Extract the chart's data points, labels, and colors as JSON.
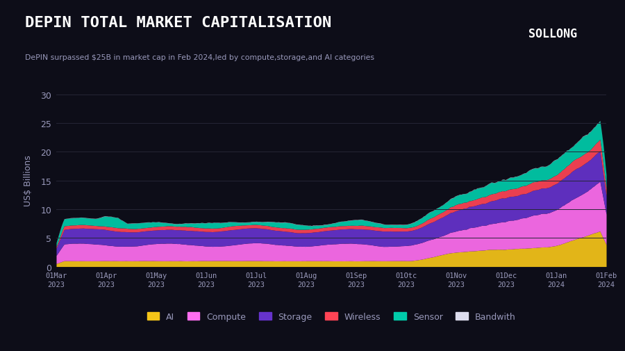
{
  "title": "DEPIN TOTAL MARKET CAPITALISATION",
  "subtitle": "DePIN surpassed $25B in market cap in Feb 2024,led by compute,storage,and AI categories",
  "ylabel": "US$ Billions",
  "bg_color": "#0d0d18",
  "plot_bg_color": "#0d0d18",
  "grid_color": "#252535",
  "title_color": "#ffffff",
  "subtitle_color": "#9999bb",
  "tick_color": "#9999bb",
  "ylim": [
    0,
    30
  ],
  "yticks": [
    0,
    5,
    10,
    15,
    20,
    25,
    30
  ],
  "xtick_labels": [
    "01Mar\n2023",
    "01Apr\n2023",
    "01May\n2023",
    "01Jun\n2023",
    "01Jul\n2023",
    "01Aug\n2023",
    "01Sep\n2023",
    "01Otc\n2023",
    "01Nov\n2023",
    "01Dec\n2023",
    "01Jan\n2024",
    "01Feb\n2024"
  ],
  "legend_labels": [
    "AI",
    "Compute",
    "Storage",
    "Wireless",
    "Sensor",
    "Bandwith"
  ],
  "colors": {
    "AI": "#f5c518",
    "Compute": "#ff6ef0",
    "Storage": "#6633cc",
    "Wireless": "#ff4455",
    "Sensor": "#00ccaa",
    "Bandwith": "#ddddee"
  },
  "n_points": 350
}
